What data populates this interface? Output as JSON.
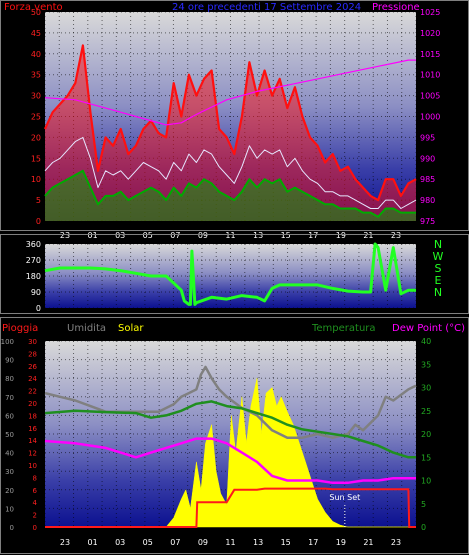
{
  "colors": {
    "background": "#000000",
    "frame": "#7f7f7f",
    "wind_avg": "#00aa00",
    "wind_gust": "#ff1010",
    "wind_mid": "#e6e6ff",
    "pressure": "#ff00ff",
    "direction": "#22ff22",
    "rain": "#ff1a1a",
    "humidity": "#808080",
    "solar": "#ffff00",
    "temperature": "#1f8f1f",
    "dewpoint": "#ff00ff",
    "header_title": "#2a2aff",
    "sunset": "#ffffff"
  },
  "chart_data": [
    {
      "type": "line",
      "title": "24 ore precedenti 17 Settembre 2024",
      "left_label": "Forza vento",
      "right_label": "Pressione",
      "x_tick_labels": [
        "23",
        "01",
        "03",
        "05",
        "07",
        "09",
        "11",
        "13",
        "15",
        "17",
        "19",
        "21",
        "23"
      ],
      "y_left": {
        "ticks": [
          0,
          5,
          10,
          15,
          20,
          25,
          30,
          35,
          40,
          45,
          50
        ],
        "range": [
          0,
          50
        ]
      },
      "y_right": {
        "ticks": [
          975,
          980,
          985,
          990,
          995,
          1000,
          1005,
          1010,
          1015,
          1020,
          1025
        ],
        "range": [
          975,
          1025
        ]
      },
      "x_range": [
        0,
        24.5
      ],
      "series": [
        {
          "role": "gust",
          "x": [
            0,
            0.5,
            1,
            1.5,
            2,
            2.5,
            3,
            3.5,
            4,
            4.5,
            5,
            5.5,
            6,
            6.5,
            7,
            7.5,
            8,
            8.5,
            9,
            9.5,
            10,
            10.5,
            11,
            11.5,
            12,
            12.5,
            13,
            13.5,
            14,
            14.5,
            15,
            15.5,
            16,
            16.5,
            17,
            17.5,
            18,
            18.5,
            19,
            19.5,
            20,
            20.5,
            21,
            21.5,
            22,
            22.5,
            23,
            23.5,
            24,
            24.5
          ],
          "values": [
            22,
            26,
            28,
            30,
            33,
            42,
            26,
            12,
            20,
            18,
            22,
            16,
            18,
            22,
            24,
            21,
            20,
            33,
            25,
            35,
            30,
            34,
            36,
            22,
            20,
            16,
            25,
            38,
            30,
            36,
            30,
            34,
            27,
            32,
            25,
            20,
            18,
            14,
            16,
            12,
            13,
            10,
            8,
            6,
            5,
            10,
            10,
            6,
            9,
            10
          ]
        },
        {
          "role": "mid",
          "x": [
            0,
            0.5,
            1,
            1.5,
            2,
            2.5,
            3,
            3.5,
            4,
            4.5,
            5,
            5.5,
            6,
            6.5,
            7,
            7.5,
            8,
            8.5,
            9,
            9.5,
            10,
            10.5,
            11,
            11.5,
            12,
            12.5,
            13,
            13.5,
            14,
            14.5,
            15,
            15.5,
            16,
            16.5,
            17,
            17.5,
            18,
            18.5,
            19,
            19.5,
            20,
            20.5,
            21,
            21.5,
            22,
            22.5,
            23,
            23.5,
            24,
            24.5
          ],
          "values": [
            12,
            14,
            15,
            17,
            19,
            20,
            15,
            8,
            12,
            11,
            12,
            10,
            12,
            14,
            13,
            12,
            10,
            14,
            12,
            16,
            14,
            17,
            16,
            13,
            11,
            9,
            13,
            18,
            15,
            17,
            16,
            17,
            13,
            15,
            12,
            10,
            9,
            7,
            7,
            6,
            6,
            5,
            4,
            3,
            3,
            5,
            5,
            3,
            4,
            5
          ]
        },
        {
          "role": "average",
          "x": [
            0,
            0.5,
            1,
            1.5,
            2,
            2.5,
            3,
            3.5,
            4,
            4.5,
            5,
            5.5,
            6,
            6.5,
            7,
            7.5,
            8,
            8.5,
            9,
            9.5,
            10,
            10.5,
            11,
            11.5,
            12,
            12.5,
            13,
            13.5,
            14,
            14.5,
            15,
            15.5,
            16,
            16.5,
            17,
            17.5,
            18,
            18.5,
            19,
            19.5,
            20,
            20.5,
            21,
            21.5,
            22,
            22.5,
            23,
            23.5,
            24,
            24.5
          ],
          "values": [
            6,
            8,
            9,
            10,
            11,
            12,
            8,
            4,
            6,
            6,
            7,
            5,
            6,
            7,
            8,
            7,
            5,
            8,
            6,
            9,
            8,
            10,
            9,
            7,
            6,
            5,
            7,
            10,
            8,
            10,
            9,
            10,
            7,
            8,
            7,
            6,
            5,
            4,
            4,
            3,
            3,
            3,
            2,
            2,
            1,
            3,
            3,
            2,
            2,
            2
          ]
        },
        {
          "role": "pressure",
          "axis": "right",
          "x": [
            0,
            2,
            4,
            6,
            8,
            9,
            10,
            12,
            14,
            16,
            18,
            20,
            22,
            24,
            24.5
          ],
          "values": [
            1004.5,
            1004,
            1002,
            1000,
            998,
            998.5,
            1000.5,
            1004,
            1006,
            1007.5,
            1009,
            1010.5,
            1012,
            1013.5,
            1013.5
          ]
        }
      ]
    },
    {
      "type": "line",
      "direction_labels": [
        "N",
        "W",
        "S",
        "E",
        "N"
      ],
      "x_tick_labels": [],
      "y_left": {
        "ticks": [
          0,
          90,
          180,
          270,
          360
        ],
        "range": [
          0,
          360
        ]
      },
      "x_range": [
        0,
        24.5
      ],
      "series": [
        {
          "role": "direction",
          "x": [
            0,
            1,
            2,
            3,
            4,
            5,
            6,
            7,
            8,
            9,
            9.2,
            9.5,
            9.6,
            9.7,
            9.9,
            10,
            11,
            12,
            13,
            14,
            14.5,
            15,
            15.5,
            16,
            17,
            18,
            19,
            20,
            21,
            21.5,
            21.8,
            22,
            22.5,
            23,
            23.5,
            24,
            24.5
          ],
          "values": [
            210,
            225,
            225,
            225,
            220,
            210,
            195,
            180,
            180,
            100,
            40,
            20,
            20,
            320,
            20,
            30,
            60,
            50,
            70,
            60,
            40,
            110,
            130,
            130,
            130,
            130,
            110,
            95,
            90,
            90,
            360,
            340,
            100,
            340,
            80,
            100,
            100
          ]
        }
      ]
    },
    {
      "type": "line",
      "labels": {
        "rain": "Pioggia",
        "humidity": "Umidita",
        "solar": "Solar",
        "temperature": "Temperatura",
        "dewpoint": "Dew Point (°C)"
      },
      "annotation": "Sun Set",
      "annotation_x": 19.8,
      "x_tick_labels": [
        "23",
        "01",
        "03",
        "05",
        "07",
        "09",
        "11",
        "13",
        "15",
        "17",
        "19",
        "21",
        "23"
      ],
      "y_humidity": {
        "ticks": [
          0,
          10,
          20,
          30,
          40,
          50,
          60,
          70,
          80,
          90,
          100
        ],
        "range": [
          0,
          100
        ]
      },
      "y_rain": {
        "ticks": [
          0,
          2,
          4,
          6,
          8,
          10,
          12,
          14,
          16,
          18,
          20,
          22,
          24,
          26,
          28,
          30
        ],
        "range": [
          0,
          30
        ]
      },
      "y_temp": {
        "ticks": [
          0,
          5,
          10,
          15,
          20,
          25,
          30,
          35,
          40
        ],
        "range": [
          0,
          40
        ]
      },
      "x_range": [
        0,
        24.5
      ],
      "series": [
        {
          "role": "solar",
          "x": [
            0,
            8,
            8.5,
            9,
            9.3,
            9.6,
            10,
            10.3,
            10.6,
            11,
            11.3,
            11.6,
            12,
            12.3,
            12.6,
            13,
            13.3,
            13.6,
            14,
            14.3,
            14.6,
            15,
            15.3,
            15.6,
            16,
            16.4,
            16.8,
            17.2,
            17.6,
            18,
            18.5,
            19,
            19.5,
            20,
            24.5
          ],
          "values": [
            0,
            0,
            5,
            15,
            20,
            10,
            35,
            20,
            45,
            55,
            30,
            18,
            12,
            60,
            40,
            70,
            45,
            65,
            80,
            50,
            72,
            75,
            65,
            70,
            62,
            55,
            45,
            35,
            25,
            15,
            8,
            3,
            1,
            0,
            0
          ]
        },
        {
          "role": "humidity",
          "x": [
            0,
            1,
            2,
            3,
            4,
            5,
            6,
            7,
            7.5,
            8,
            8.5,
            9,
            9.5,
            10,
            10.3,
            10.6,
            11,
            11.5,
            12,
            13,
            14,
            15,
            16,
            17,
            18,
            19,
            20,
            20.5,
            21,
            22,
            22.5,
            23,
            24,
            24.5
          ],
          "values": [
            72,
            70,
            68,
            65,
            62,
            62,
            62,
            62,
            62,
            64,
            66,
            70,
            72,
            74,
            82,
            86,
            80,
            74,
            70,
            64,
            60,
            52,
            48,
            48,
            50,
            48,
            50,
            55,
            52,
            60,
            70,
            68,
            74,
            76
          ]
        },
        {
          "role": "temperature",
          "x": [
            0,
            2,
            4,
            6,
            7,
            8,
            9,
            10,
            11,
            12,
            13,
            14,
            15,
            16,
            17,
            18,
            19,
            20,
            21,
            22,
            23,
            24,
            24.5
          ],
          "values": [
            24.5,
            25,
            24.7,
            24.5,
            23.5,
            24,
            25,
            26.5,
            27,
            26,
            25.5,
            24.5,
            23.5,
            22,
            21,
            20.5,
            20,
            19.5,
            18.5,
            17.5,
            16,
            15,
            15
          ]
        },
        {
          "role": "dewpoint",
          "x": [
            0,
            2,
            4,
            5,
            6,
            7,
            8,
            9,
            10,
            11,
            12,
            13,
            14,
            15,
            16,
            17,
            18,
            19,
            20,
            21,
            22,
            23,
            24,
            24.5
          ],
          "values": [
            18.5,
            18,
            17,
            16,
            15,
            16,
            17,
            18,
            19,
            19,
            18,
            16,
            14,
            11,
            10,
            10,
            10,
            9.5,
            9.5,
            10,
            10,
            10.5,
            10.5,
            10.5
          ]
        },
        {
          "role": "rain",
          "x": [
            0,
            10,
            10.05,
            12,
            12.5,
            14,
            14.5,
            15,
            16,
            18,
            18.5,
            19,
            21,
            24,
            24.05,
            24.5
          ],
          "values": [
            0,
            0,
            4,
            4,
            6,
            6,
            6.2,
            6.2,
            6.2,
            6.2,
            6.2,
            6.1,
            6.1,
            6.1,
            0,
            0
          ]
        }
      ]
    }
  ]
}
